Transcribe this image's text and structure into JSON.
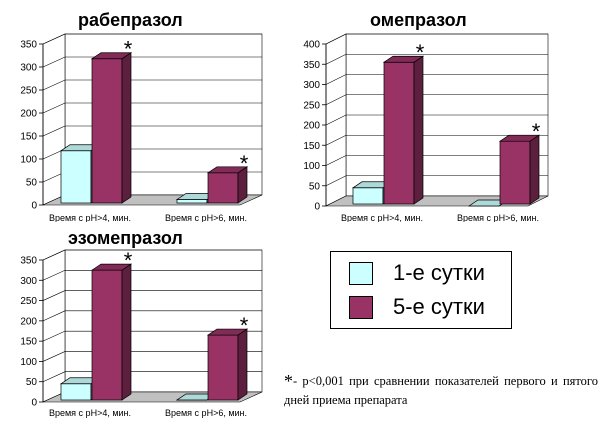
{
  "legend": {
    "items": [
      {
        "label": "1-е сутки",
        "color": "#ccffff"
      },
      {
        "label": "5-е сутки",
        "color": "#993366"
      }
    ]
  },
  "footnote": {
    "star": "*",
    "text": "- p<0,001 при сравнении показателей первого и пятого дней приема препарата"
  },
  "colors": {
    "day1": "#ccffff",
    "day5": "#993366",
    "floor": "#c0c0c0"
  },
  "chart_data": [
    {
      "type": "bar",
      "title": "рабепразол",
      "categories": [
        "Время с pH>4, мин.",
        "Время с pH>6, мин."
      ],
      "series": [
        {
          "name": "1-е сутки",
          "values": [
            118,
            12
          ]
        },
        {
          "name": "5-е сутки",
          "values": [
            318,
            70
          ]
        }
      ],
      "ylim": [
        0,
        350
      ],
      "yticks": [
        0,
        50,
        100,
        150,
        200,
        250,
        300,
        350
      ],
      "annotations": [
        "*",
        "*"
      ],
      "grid": true
    },
    {
      "type": "bar",
      "title": "омепразол",
      "categories": [
        "Время с pH>4, мин.",
        "Время с pH>6, мин."
      ],
      "series": [
        {
          "name": "1-е сутки",
          "values": [
            45,
            0
          ]
        },
        {
          "name": "5-е сутки",
          "values": [
            355,
            160
          ]
        }
      ],
      "ylim": [
        0,
        400
      ],
      "yticks": [
        0,
        50,
        100,
        150,
        200,
        250,
        300,
        350,
        400
      ],
      "annotations": [
        "*",
        "*"
      ],
      "grid": true
    },
    {
      "type": "bar",
      "title": "эзомепразол",
      "categories": [
        "Время с pH>4, мин.",
        "Время с pH>6, мин."
      ],
      "series": [
        {
          "name": "1-е сутки",
          "values": [
            45,
            5
          ]
        },
        {
          "name": "5-е сутки",
          "values": [
            325,
            165
          ]
        }
      ],
      "ylim": [
        0,
        350
      ],
      "yticks": [
        0,
        50,
        100,
        150,
        200,
        250,
        300,
        350
      ],
      "annotations": [
        "*",
        "*"
      ],
      "grid": true
    }
  ]
}
